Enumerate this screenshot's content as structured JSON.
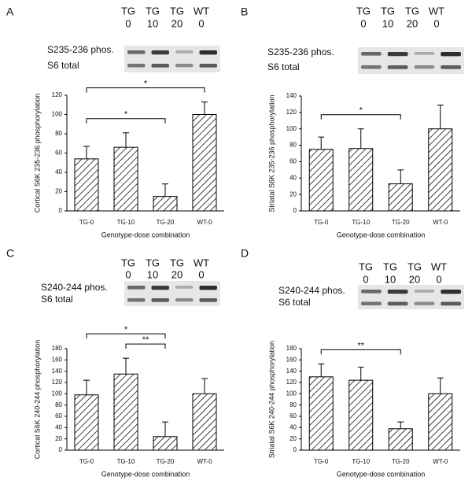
{
  "chart_data": [
    {
      "type": "bar",
      "panel": "A",
      "blot_lanes": [
        {
          "genotype": "TG",
          "dose": "0"
        },
        {
          "genotype": "TG",
          "dose": "10"
        },
        {
          "genotype": "TG",
          "dose": "20"
        },
        {
          "genotype": "WT",
          "dose": "0"
        }
      ],
      "blot_rows": [
        "S235-236 phos.",
        "S6 total"
      ],
      "ylabel": "Cortical S6K 235-236 phosphorylation",
      "xlabel": "Genotype-dose combination",
      "categories": [
        "TG-0",
        "TG-10",
        "TG-20",
        "WT-0"
      ],
      "values": [
        54,
        66,
        15,
        100
      ],
      "errors": [
        13,
        15,
        13,
        13
      ],
      "ylim": [
        0,
        120
      ],
      "yticks": [
        0,
        20,
        40,
        60,
        80,
        100,
        120
      ],
      "significance": [
        {
          "from": "TG-0",
          "to": "TG-20",
          "label": "*"
        },
        {
          "from": "TG-0",
          "to": "WT-0",
          "label": "*"
        }
      ]
    },
    {
      "type": "bar",
      "panel": "B",
      "blot_lanes": [
        {
          "genotype": "TG",
          "dose": "0"
        },
        {
          "genotype": "TG",
          "dose": "10"
        },
        {
          "genotype": "TG",
          "dose": "20"
        },
        {
          "genotype": "WT",
          "dose": "0"
        }
      ],
      "blot_rows": [
        "S235-236 phos.",
        "S6 total"
      ],
      "ylabel": "Striatal S6K 235-236 phosphorylation",
      "xlabel": "Genotype-dose combination",
      "categories": [
        "TG-0",
        "TG-10",
        "TG-20",
        "WT-0"
      ],
      "values": [
        75,
        76,
        33,
        100
      ],
      "errors": [
        15,
        24,
        17,
        29
      ],
      "ylim": [
        0,
        140
      ],
      "yticks": [
        0,
        20,
        40,
        60,
        80,
        100,
        120,
        140
      ],
      "significance": [
        {
          "from": "TG-0",
          "to": "TG-20",
          "label": "*"
        }
      ]
    },
    {
      "type": "bar",
      "panel": "C",
      "blot_lanes": [
        {
          "genotype": "TG",
          "dose": "0"
        },
        {
          "genotype": "TG",
          "dose": "10"
        },
        {
          "genotype": "TG",
          "dose": "20"
        },
        {
          "genotype": "WT",
          "dose": "0"
        }
      ],
      "blot_rows": [
        "S240-244 phos.",
        "S6 total"
      ],
      "ylabel": "Cortical S6K 240-244 phosphorylation",
      "xlabel": "Genotype-dose combination",
      "categories": [
        "TG-0",
        "TG-10",
        "TG-20",
        "WT-0"
      ],
      "values": [
        98,
        135,
        24,
        100
      ],
      "errors": [
        26,
        28,
        26,
        27
      ],
      "ylim": [
        0,
        180
      ],
      "yticks": [
        0,
        20,
        40,
        60,
        80,
        100,
        120,
        140,
        160,
        180
      ],
      "significance": [
        {
          "from": "TG-10",
          "to": "TG-20",
          "label": "**"
        },
        {
          "from": "TG-0",
          "to": "TG-20",
          "label": "*"
        }
      ]
    },
    {
      "type": "bar",
      "panel": "D",
      "blot_lanes": [
        {
          "genotype": "TG",
          "dose": "0"
        },
        {
          "genotype": "TG",
          "dose": "10"
        },
        {
          "genotype": "TG",
          "dose": "20"
        },
        {
          "genotype": "WT",
          "dose": "0"
        }
      ],
      "blot_rows": [
        "S240-244 phos.",
        "S6 total"
      ],
      "ylabel": "Striatal S6K 240-244 phosphorylation",
      "xlabel": "Genotype-dose combination",
      "categories": [
        "TG-0",
        "TG-10",
        "TG-20",
        "WT-0"
      ],
      "values": [
        130,
        124,
        38,
        100
      ],
      "errors": [
        23,
        23,
        12,
        28
      ],
      "ylim": [
        0,
        180
      ],
      "yticks": [
        0,
        20,
        40,
        60,
        80,
        100,
        120,
        140,
        160,
        180
      ],
      "significance": [
        {
          "from": "TG-0",
          "to": "TG-20",
          "label": "**"
        }
      ]
    }
  ]
}
